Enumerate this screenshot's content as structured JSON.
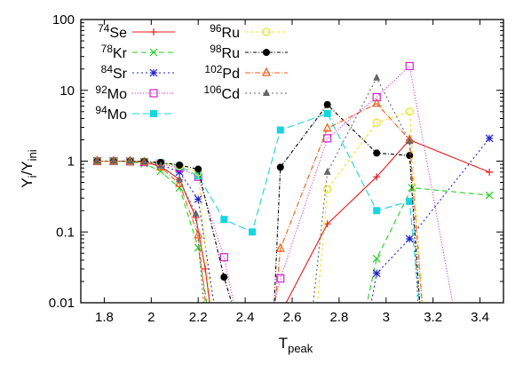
{
  "chart_data": {
    "type": "line",
    "title": "",
    "xlabel": {
      "main": "T",
      "sub": "peak"
    },
    "ylabel": {
      "main": "Y",
      "sub1": "i",
      "mid": "/Y",
      "sub2": "ini"
    },
    "xlim": [
      1.7,
      3.5
    ],
    "ylim": [
      0.01,
      100
    ],
    "yscale": "log",
    "grid": false,
    "legend_position": "top-left",
    "x_ticks": [
      1.8,
      2,
      2.2,
      2.4,
      2.6,
      2.8,
      3,
      3.2,
      3.4
    ],
    "x_tick_labels": [
      "1.8",
      "2",
      "2.2",
      "2.4",
      "2.6",
      "2.8",
      "3",
      "3.2",
      "3.4"
    ],
    "y_ticks": [
      0.01,
      0.1,
      1,
      10,
      100
    ],
    "y_tick_labels": [
      "0.01",
      "0.1",
      "1",
      "10",
      "100"
    ],
    "series": [
      {
        "name": "Se",
        "mass": "74",
        "color": "#e8191a",
        "dash": "",
        "marker": "plus",
        "x": [
          1.77,
          1.84,
          1.91,
          1.97,
          2.04,
          2.12,
          2.19,
          2.23,
          2.26,
          2.55,
          2.75,
          2.96,
          3.1,
          3.44
        ],
        "y": [
          1.0,
          1.0,
          1.0,
          0.97,
          0.85,
          0.55,
          0.16,
          0.03,
          0.005,
          0.007,
          0.13,
          0.6,
          2.0,
          0.7
        ]
      },
      {
        "name": "Kr",
        "mass": "78",
        "color": "#1fd11f",
        "dash": "6,4",
        "marker": "x",
        "x": [
          1.77,
          1.84,
          1.91,
          1.97,
          2.04,
          2.12,
          2.2,
          2.25,
          2.9,
          2.96,
          3.11,
          3.44
        ],
        "y": [
          1.0,
          1.0,
          0.98,
          0.92,
          0.72,
          0.42,
          0.06,
          0.005,
          0.005,
          0.042,
          0.42,
          0.33
        ]
      },
      {
        "name": "Sr",
        "mass": "84",
        "color": "#1f1fd1",
        "dash": "2,3",
        "marker": "star",
        "x": [
          1.77,
          1.84,
          1.91,
          1.97,
          2.04,
          2.12,
          2.2,
          2.28,
          2.92,
          2.96,
          3.1,
          3.44
        ],
        "y": [
          1.0,
          1.0,
          1.0,
          0.97,
          0.9,
          0.7,
          0.29,
          0.005,
          0.005,
          0.026,
          0.08,
          2.1
        ]
      },
      {
        "name": "Mo",
        "mass": "92",
        "color": "#d11fd1",
        "dash": "1,2",
        "marker": "square-open",
        "x": [
          1.77,
          1.84,
          1.91,
          1.97,
          2.04,
          2.12,
          2.2,
          2.31,
          2.37,
          2.5,
          2.55,
          2.75,
          2.96,
          3.1,
          3.3
        ],
        "y": [
          1.0,
          1.0,
          0.99,
          0.97,
          0.92,
          0.8,
          0.6,
          0.044,
          0.005,
          0.005,
          0.022,
          2.1,
          8.0,
          22.0,
          0.005
        ]
      },
      {
        "name": "Mo",
        "mass": "94",
        "color": "#14d6e0",
        "dash": "8,4",
        "marker": "square",
        "x": [
          1.77,
          1.84,
          1.91,
          1.97,
          2.04,
          2.12,
          2.2,
          2.31,
          2.43,
          2.55,
          2.75,
          2.96,
          3.1,
          3.15
        ],
        "y": [
          1.0,
          1.0,
          1.0,
          0.99,
          0.95,
          0.85,
          0.62,
          0.15,
          0.1,
          2.75,
          4.7,
          0.2,
          0.27,
          0.005
        ]
      },
      {
        "name": "Ru",
        "mass": "96",
        "color": "#e6e61a",
        "dash": "3,3",
        "marker": "circle-open",
        "x": [
          1.77,
          1.84,
          1.91,
          1.97,
          2.04,
          2.12,
          2.2,
          2.26,
          2.7,
          2.75,
          2.96,
          3.1,
          3.16
        ],
        "y": [
          1.0,
          1.0,
          1.0,
          0.99,
          0.94,
          0.85,
          0.7,
          0.005,
          0.005,
          0.4,
          3.5,
          5.0,
          0.005
        ]
      },
      {
        "name": "Ru",
        "mass": "98",
        "color": "#000000",
        "dash": "4,2,1,2",
        "marker": "circle",
        "x": [
          1.77,
          1.84,
          1.91,
          1.97,
          2.04,
          2.12,
          2.2,
          2.31,
          2.37,
          2.52,
          2.55,
          2.75,
          2.96,
          3.1,
          3.15
        ],
        "y": [
          1.0,
          1.0,
          1.0,
          0.99,
          0.96,
          0.88,
          0.77,
          0.023,
          0.005,
          0.005,
          0.82,
          6.3,
          1.3,
          1.2,
          0.005
        ]
      },
      {
        "name": "Pd",
        "mass": "102",
        "color": "#f05a14",
        "dash": "6,2,1,2",
        "marker": "triangle-open",
        "x": [
          1.77,
          1.84,
          1.91,
          1.97,
          2.04,
          2.12,
          2.2,
          2.24,
          2.52,
          2.55,
          2.75,
          2.96,
          3.1,
          3.16
        ],
        "y": [
          1.0,
          1.0,
          1.0,
          0.97,
          0.82,
          0.48,
          0.09,
          0.005,
          0.005,
          0.058,
          2.9,
          6.5,
          2.0,
          0.005
        ]
      },
      {
        "name": "Cd",
        "mass": "106",
        "color": "#666666",
        "dash": "2,3",
        "marker": "triangle",
        "x": [
          1.77,
          1.84,
          1.91,
          1.97,
          2.04,
          2.12,
          2.19,
          2.23,
          2.68,
          2.75,
          2.96,
          3.1,
          3.14
        ],
        "y": [
          1.0,
          1.0,
          1.0,
          0.98,
          0.86,
          0.55,
          0.18,
          0.005,
          0.005,
          0.7,
          15.0,
          1.9,
          0.005
        ]
      }
    ]
  }
}
